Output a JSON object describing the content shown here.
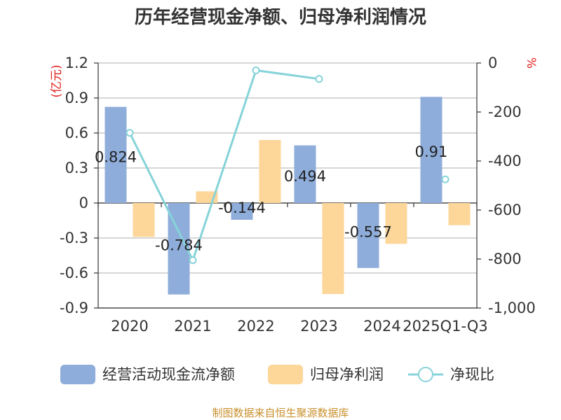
{
  "chart_data": {
    "type": "bar",
    "title": "历年经营现金净额、归母净利润情况",
    "categories": [
      "2020",
      "2021",
      "2022",
      "2023",
      "2024",
      "2025Q1-Q3"
    ],
    "series": [
      {
        "name": "经营活动现金流净额",
        "axis": "left",
        "kind": "bar",
        "color": "#8eaddb",
        "values": [
          0.824,
          -0.784,
          -0.144,
          0.494,
          -0.557,
          0.91
        ],
        "data_labels": [
          "0.824",
          "-0.784",
          "-0.144",
          "0.494",
          "-0.557",
          "0.91"
        ]
      },
      {
        "name": "归母净利润",
        "axis": "left",
        "kind": "bar",
        "color": "#fdd699",
        "values": [
          -0.29,
          0.1,
          0.54,
          -0.78,
          -0.35,
          -0.19
        ]
      },
      {
        "name": "净现比",
        "axis": "right",
        "kind": "line",
        "color": "#86d3d8",
        "values": [
          -285,
          -805,
          -30,
          -65,
          null,
          -475
        ]
      }
    ],
    "left_axis": {
      "unit": "(亿元)",
      "ylim": [
        -0.9,
        1.2
      ],
      "ticks": [
        1.2,
        0.9,
        0.6,
        0.3,
        0,
        -0.3,
        -0.6,
        -0.9
      ],
      "tick_labels": [
        "1.2",
        "0.9",
        "0.6",
        "0.3",
        "0",
        "-0.3",
        "-0.6",
        "-0.9"
      ]
    },
    "right_axis": {
      "unit": "%",
      "ylim": [
        -1000,
        0
      ],
      "ticks": [
        0,
        -200,
        -400,
        -600,
        -800,
        -1000
      ],
      "tick_labels": [
        "0",
        "-200",
        "-400",
        "-600",
        "-800",
        "-1,000"
      ]
    },
    "grid": true,
    "legend_position": "bottom"
  },
  "source_text": "制图数据来自恒生聚源数据库"
}
